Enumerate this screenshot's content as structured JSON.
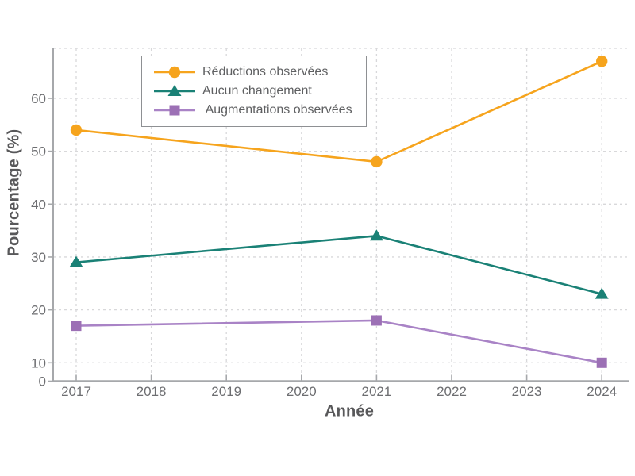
{
  "chart_data": {
    "type": "line",
    "title": "",
    "xlabel": "Année",
    "ylabel": "Pourcentage (%)",
    "x_years": [
      2017,
      2018,
      2019,
      2020,
      2021,
      2022,
      2023,
      2024
    ],
    "x_tick_labels": [
      "2017",
      "2018",
      "2019",
      "2020",
      "2021",
      "2022",
      "2023",
      "2024"
    ],
    "y_ticks": [
      0,
      10,
      20,
      30,
      40,
      50,
      60
    ],
    "ylim": [
      0,
      70
    ],
    "grid": "dashed",
    "legend_position": "upper-left-inside",
    "series": [
      {
        "name": "Réductions observées",
        "marker": "circle",
        "color": "#F6A41D",
        "marker_color": "#F6A41D",
        "x": [
          2017,
          2021,
          2024
        ],
        "values": [
          54,
          48,
          67
        ]
      },
      {
        "name": "Aucun changement",
        "marker": "triangle",
        "color": "#1A8176",
        "marker_color": "#1A8176",
        "x": [
          2017,
          2021,
          2024
        ],
        "values": [
          29,
          34,
          23
        ]
      },
      {
        "name": " Augmentations observées",
        "marker": "square",
        "color": "#A983C6",
        "marker_color": "#9C70B5",
        "x": [
          2017,
          2021,
          2024
        ],
        "values": [
          17,
          18,
          10
        ]
      }
    ]
  },
  "style": {
    "background": "#FFFFFF",
    "grid_color": "#D8D8DA",
    "spine_color": "#A6A8AB",
    "tick_color": "#A6A8AB",
    "tick_label_color": "#6D6E71",
    "axis_title_color": "#58585A",
    "legend_border_color": "#8E9093",
    "legend_text_color": "#5E5F61"
  }
}
